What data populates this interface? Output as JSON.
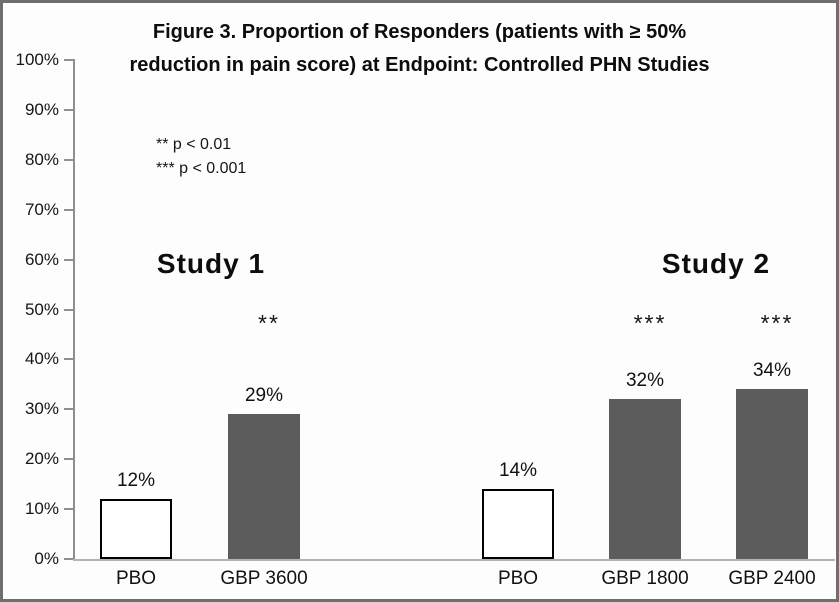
{
  "figure": {
    "border_color": "#6e6e6e",
    "background": "#fdfdfd"
  },
  "chart_data": {
    "type": "bar",
    "title": "Figure 3. Proportion of Responders (patients with ≥ 50% reduction in pain score) at Endpoint: Controlled PHN Studies",
    "title_lines": [
      "Figure 3. Proportion of Responders (patients with ≥ 50%",
      "reduction in pain score) at Endpoint: Controlled PHN Studies"
    ],
    "xlabel": "",
    "ylabel": "",
    "ylim": [
      0,
      100
    ],
    "ytick_step": 10,
    "ytick_suffix": "%",
    "grid": false,
    "legend": "none",
    "annotations": [
      {
        "text": "** p < 0.01"
      },
      {
        "text": "*** p < 0.001"
      }
    ],
    "group_labels": [
      "Study 1",
      "Study 2"
    ],
    "categories": [
      "PBO",
      "GBP 3600",
      "PBO",
      "GBP 1800",
      "GBP 2400"
    ],
    "values": [
      12,
      29,
      14,
      32,
      34
    ],
    "bars": [
      {
        "label": "PBO",
        "value": 12,
        "value_label": "12%",
        "significance": "",
        "group": "Study 1",
        "style": "light"
      },
      {
        "label": "GBP 3600",
        "value": 29,
        "value_label": "29%",
        "significance": "**",
        "group": "Study 1",
        "style": "dark"
      },
      {
        "label": "PBO",
        "value": 14,
        "value_label": "14%",
        "significance": "",
        "group": "Study 2",
        "style": "light"
      },
      {
        "label": "GBP 1800",
        "value": 32,
        "value_label": "32%",
        "significance": "***",
        "group": "Study 2",
        "style": "dark"
      },
      {
        "label": "GBP 2400",
        "value": 34,
        "value_label": "34%",
        "significance": "***",
        "group": "Study 2",
        "style": "dark"
      }
    ],
    "colors": {
      "bar_dark": "#5c5c5c",
      "bar_light": "#ffffff",
      "bar_border": "#000000",
      "axis_line": "#8f8f8f",
      "baseline": "#b3b3b3",
      "text": "#111111"
    }
  }
}
